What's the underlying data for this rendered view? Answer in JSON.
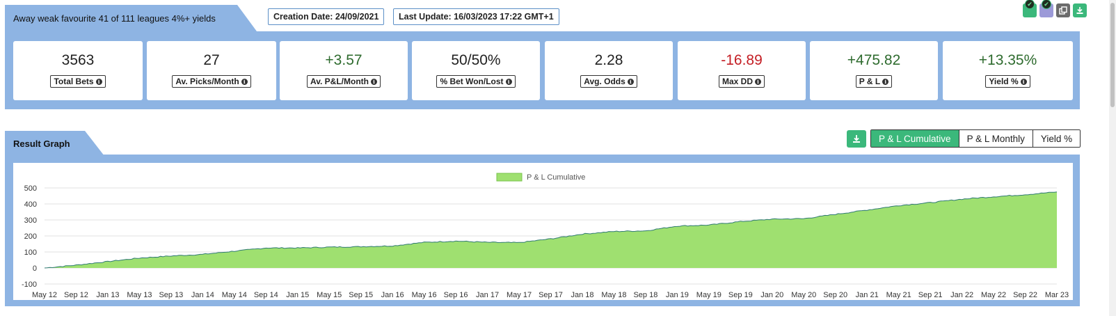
{
  "header": {
    "strategy_title": "Away weak favourite 41 of 111 leagues 4%+ yields",
    "creation_date": "Creation Date: 24/09/2021",
    "last_update": "Last Update: 16/03/2023 17:22 GMT+1",
    "icons": [
      "check-green-icon",
      "check-purple-icon",
      "copy-icon",
      "download-icon"
    ]
  },
  "stats": [
    {
      "value": "3563",
      "label": "Total Bets",
      "tone": "neutral"
    },
    {
      "value": "27",
      "label": "Av. Picks/Month",
      "tone": "neutral"
    },
    {
      "value": "+3.57",
      "label": "Av. P&L/Month",
      "tone": "pos"
    },
    {
      "value": "50/50%",
      "label": "% Bet Won/Lost",
      "tone": "neutral"
    },
    {
      "value": "2.28",
      "label": "Avg. Odds",
      "tone": "neutral"
    },
    {
      "value": "-16.89",
      "label": "Max DD",
      "tone": "neg"
    },
    {
      "value": "+475.82",
      "label": "P & L",
      "tone": "pos"
    },
    {
      "value": "+13.35%",
      "label": "Yield %",
      "tone": "pos"
    }
  ],
  "graph": {
    "section_title": "Result Graph",
    "buttons": [
      {
        "label": "P & L Cumulative",
        "active": true
      },
      {
        "label": "P & L Monthly",
        "active": false
      },
      {
        "label": "Yield %",
        "active": false
      }
    ]
  },
  "colors": {
    "band": "#8eb4e3",
    "accent": "#3bb87b",
    "area_fill": "#9fe070",
    "area_line": "#2f7a72",
    "positive": "#2e6b2e",
    "negative": "#c41e24"
  },
  "chart_data": {
    "type": "area",
    "legend": "P & L Cumulative",
    "legend_position": "top-center",
    "grid": true,
    "yticks": [
      500,
      400,
      300,
      200,
      100,
      0,
      -100
    ],
    "ylim": [
      -100,
      500
    ],
    "xticks": [
      "May 12",
      "Sep 12",
      "Jan 13",
      "May 13",
      "Sep 13",
      "Jan 14",
      "May 14",
      "Sep 14",
      "Jan 15",
      "May 15",
      "Sep 15",
      "Jan 16",
      "May 16",
      "Sep 16",
      "Jan 17",
      "May 17",
      "Sep 17",
      "Jan 18",
      "May 18",
      "Sep 18",
      "Jan 19",
      "May 19",
      "Sep 19",
      "Jan 20",
      "May 20",
      "Sep 20",
      "Jan 21",
      "May 21",
      "Sep 21",
      "Jan 22",
      "May 22",
      "Sep 22",
      "Mar 23"
    ],
    "series": [
      {
        "name": "P & L Cumulative",
        "x": [
          "May 12",
          "Sep 12",
          "Jan 13",
          "May 13",
          "Sep 13",
          "Jan 14",
          "May 14",
          "Sep 14",
          "Jan 15",
          "May 15",
          "Sep 15",
          "Jan 16",
          "May 16",
          "Sep 16",
          "Jan 17",
          "May 17",
          "Sep 17",
          "Jan 18",
          "May 18",
          "Sep 18",
          "Jan 19",
          "May 19",
          "Sep 19",
          "Jan 20",
          "May 20",
          "Sep 20",
          "Jan 21",
          "May 21",
          "Sep 21",
          "Jan 22",
          "May 22",
          "Sep 22",
          "Mar 23"
        ],
        "values": [
          0,
          18,
          40,
          62,
          75,
          85,
          105,
          125,
          125,
          130,
          133,
          138,
          160,
          168,
          160,
          158,
          182,
          212,
          228,
          232,
          262,
          268,
          290,
          305,
          308,
          335,
          362,
          390,
          408,
          430,
          445,
          458,
          475
        ]
      }
    ]
  }
}
